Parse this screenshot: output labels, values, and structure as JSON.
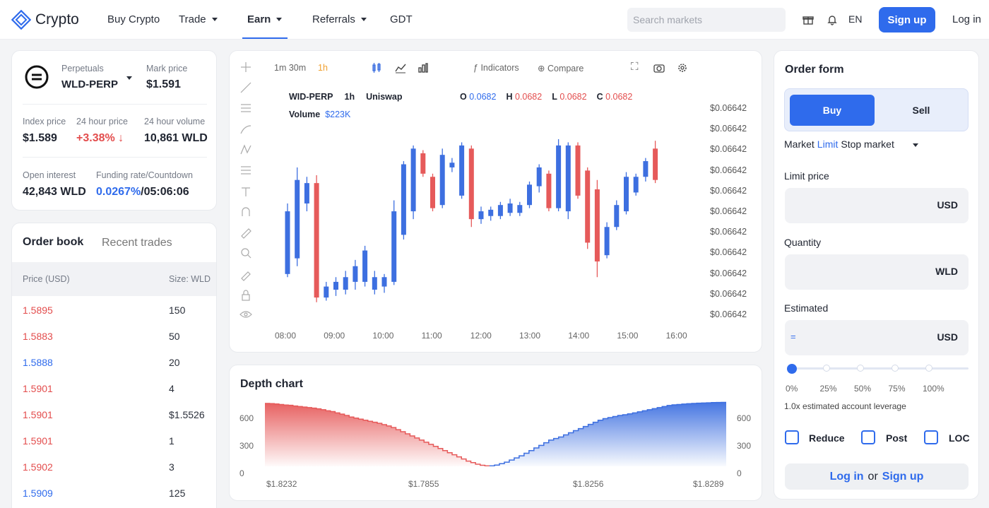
{
  "nav": {
    "brand": "Crypto",
    "items": [
      "Buy Crypto",
      "Trade",
      "Earn",
      "Referrals",
      "GDT"
    ],
    "search_placeholder": "Search markets",
    "lang": "EN",
    "signup": "Sign up",
    "login": "Log in"
  },
  "ticker": {
    "market_type": "Perpetuals",
    "symbol": "WLD-PERP",
    "mark_price_label": "Mark price",
    "mark_price": "$1.591",
    "index_price_label": "Index price",
    "index_price": "$1.589",
    "change_label": "24 hour price",
    "change": "+3.38%",
    "volume_label": "24 hour volume",
    "volume": "10,861 WLD",
    "oi_label": "Open interest",
    "oi": "42,843 WLD",
    "funding_label": "Funding rate/Countdown",
    "funding_rate": "0.0267%",
    "countdown": "/05:06:06"
  },
  "orderbook": {
    "tab_active": "Order book",
    "tab_other": "Recent trades",
    "col_price": "Price (USD)",
    "col_size": "Size: WLD",
    "rows": [
      {
        "price": "1.5895",
        "size": "150",
        "side": "sell"
      },
      {
        "price": "1.5883",
        "size": "50",
        "side": "sell"
      },
      {
        "price": "1.5888",
        "size": "20",
        "side": "buy"
      },
      {
        "price": "1.5901",
        "size": "4",
        "side": "sell"
      },
      {
        "price": "1.5901",
        "size": "$1.5526",
        "side": "sell"
      },
      {
        "price": "1.5901",
        "size": "1",
        "side": "sell"
      },
      {
        "price": "1.5902",
        "size": "3",
        "side": "sell"
      },
      {
        "price": "1.5909",
        "size": "125",
        "side": "buy"
      }
    ]
  },
  "chart": {
    "intervals": "1m 30m",
    "active_interval": "1h",
    "indicators": "Indicators",
    "compare": "Compare",
    "symbol": "WID-PERP",
    "tf": "1h",
    "source": "Uniswap",
    "o_label": "O",
    "o": "0.0682",
    "h_label": "H",
    "h": "0.0682",
    "l_label": "L",
    "l": "0.0682",
    "c_label": "C",
    "c": "0.0682",
    "volume_label": "Volume",
    "volume": "$223K",
    "price_labels": [
      "$0.06642",
      "$0.06642",
      "$0.06642",
      "$0.06642",
      "$0.06642",
      "$0.06642",
      "$0.06642",
      "$0.06642",
      "$0.06642",
      "$0.06642",
      "$0.06642"
    ],
    "time_labels": [
      "08:00",
      "09:00",
      "10:00",
      "11:00",
      "12:00",
      "13:00",
      "14:00",
      "15:00",
      "16:00"
    ],
    "colors": {
      "up": "#3d6fe0",
      "down": "#e65a5a"
    }
  },
  "chart_data": {
    "type": "candlestick",
    "x": [
      "08:00",
      "09:00",
      "10:00",
      "11:00",
      "12:00",
      "13:00",
      "14:00",
      "15:00",
      "16:00"
    ],
    "candles": [
      {
        "o": 0.2,
        "c": 0.6,
        "h": 0.65,
        "l": 0.18,
        "dir": "up"
      },
      {
        "o": 0.3,
        "c": 0.8,
        "h": 0.88,
        "l": 0.25,
        "dir": "up"
      },
      {
        "o": 0.65,
        "c": 0.78,
        "h": 0.82,
        "l": 0.6,
        "dir": "up"
      },
      {
        "o": 0.78,
        "c": 0.05,
        "h": 0.83,
        "l": 0.02,
        "dir": "down"
      },
      {
        "o": 0.05,
        "c": 0.12,
        "h": 0.15,
        "l": 0.03,
        "dir": "up"
      },
      {
        "o": 0.1,
        "c": 0.15,
        "h": 0.18,
        "l": 0.06,
        "dir": "up"
      },
      {
        "o": 0.1,
        "c": 0.18,
        "h": 0.22,
        "l": 0.07,
        "dir": "up"
      },
      {
        "o": 0.15,
        "c": 0.25,
        "h": 0.29,
        "l": 0.1,
        "dir": "up"
      },
      {
        "o": 0.15,
        "c": 0.35,
        "h": 0.38,
        "l": 0.12,
        "dir": "up"
      },
      {
        "o": 0.1,
        "c": 0.18,
        "h": 0.22,
        "l": 0.07,
        "dir": "up"
      },
      {
        "o": 0.12,
        "c": 0.18,
        "h": 0.2,
        "l": 0.08,
        "dir": "up"
      },
      {
        "o": 0.15,
        "c": 0.6,
        "h": 0.67,
        "l": 0.13,
        "dir": "up"
      },
      {
        "o": 0.45,
        "c": 0.9,
        "h": 0.92,
        "l": 0.42,
        "dir": "up"
      },
      {
        "o": 0.6,
        "c": 1.0,
        "h": 1.02,
        "l": 0.55,
        "dir": "up"
      },
      {
        "o": 0.97,
        "c": 0.84,
        "h": 0.99,
        "l": 0.82,
        "dir": "down"
      },
      {
        "o": 0.82,
        "c": 0.62,
        "h": 0.84,
        "l": 0.6,
        "dir": "down"
      },
      {
        "o": 0.64,
        "c": 0.96,
        "h": 1.0,
        "l": 0.62,
        "dir": "up"
      },
      {
        "o": 0.88,
        "c": 0.91,
        "h": 0.94,
        "l": 0.85,
        "dir": "up"
      },
      {
        "o": 0.7,
        "c": 1.02,
        "h": 1.04,
        "l": 0.68,
        "dir": "up"
      },
      {
        "o": 1.0,
        "c": 0.55,
        "h": 1.02,
        "l": 0.5,
        "dir": "down"
      },
      {
        "o": 0.55,
        "c": 0.6,
        "h": 0.63,
        "l": 0.52,
        "dir": "up"
      },
      {
        "o": 0.57,
        "c": 0.61,
        "h": 0.63,
        "l": 0.54,
        "dir": "up"
      },
      {
        "o": 0.57,
        "c": 0.64,
        "h": 0.66,
        "l": 0.55,
        "dir": "up"
      },
      {
        "o": 0.59,
        "c": 0.65,
        "h": 0.68,
        "l": 0.57,
        "dir": "up"
      },
      {
        "o": 0.59,
        "c": 0.64,
        "h": 0.66,
        "l": 0.57,
        "dir": "up"
      },
      {
        "o": 0.64,
        "c": 0.77,
        "h": 0.79,
        "l": 0.62,
        "dir": "up"
      },
      {
        "o": 0.76,
        "c": 0.88,
        "h": 0.9,
        "l": 0.72,
        "dir": "up"
      },
      {
        "o": 0.84,
        "c": 0.62,
        "h": 0.86,
        "l": 0.6,
        "dir": "down"
      },
      {
        "o": 0.62,
        "c": 1.02,
        "h": 1.06,
        "l": 0.6,
        "dir": "up"
      },
      {
        "o": 0.6,
        "c": 1.02,
        "h": 1.04,
        "l": 0.55,
        "dir": "up"
      },
      {
        "o": 1.02,
        "c": 0.7,
        "h": 1.04,
        "l": 0.68,
        "dir": "down"
      },
      {
        "o": 0.86,
        "c": 0.4,
        "h": 0.88,
        "l": 0.36,
        "dir": "down"
      },
      {
        "o": 0.74,
        "c": 0.28,
        "h": 0.8,
        "l": 0.18,
        "dir": "down"
      },
      {
        "o": 0.32,
        "c": 0.5,
        "h": 0.53,
        "l": 0.3,
        "dir": "up"
      },
      {
        "o": 0.5,
        "c": 0.64,
        "h": 0.67,
        "l": 0.48,
        "dir": "up"
      },
      {
        "o": 0.6,
        "c": 0.82,
        "h": 0.85,
        "l": 0.58,
        "dir": "up"
      },
      {
        "o": 0.72,
        "c": 0.82,
        "h": 0.84,
        "l": 0.7,
        "dir": "up"
      },
      {
        "o": 0.82,
        "c": 0.92,
        "h": 0.94,
        "l": 0.79,
        "dir": "up"
      },
      {
        "o": 1.0,
        "c": 0.8,
        "h": 1.05,
        "l": 0.78,
        "dir": "down"
      },
      {
        "o": 0.79,
        "c": 0.93,
        "h": 0.95,
        "l": 0.77,
        "dir": "up"
      }
    ]
  },
  "depth": {
    "title": "Depth chart",
    "y_ticks": [
      "600",
      "300",
      "0"
    ],
    "x_labels": [
      "$1.8232",
      "$1.7855",
      "$1.8256",
      "$1.8289"
    ]
  },
  "depth_data": {
    "type": "area",
    "bids": [
      600,
      598,
      595,
      590,
      585,
      582,
      575,
      570,
      565,
      560,
      555,
      548,
      540,
      530,
      522,
      510,
      498,
      485,
      470,
      460,
      450,
      440,
      430,
      420,
      410,
      398,
      385,
      370,
      350,
      330,
      310,
      290,
      270,
      250,
      230,
      210,
      190,
      170,
      150,
      130,
      110,
      90,
      70,
      50,
      35,
      20,
      10,
      4
    ],
    "asks": [
      4,
      12,
      25,
      40,
      60,
      80,
      100,
      125,
      150,
      175,
      200,
      225,
      250,
      265,
      280,
      300,
      320,
      340,
      360,
      380,
      400,
      420,
      440,
      455,
      465,
      475,
      485,
      492,
      500,
      510,
      520,
      530,
      540,
      550,
      560,
      570,
      580,
      586,
      590,
      594,
      597,
      600,
      602,
      604,
      606,
      608,
      609,
      610
    ]
  },
  "orderform": {
    "title": "Order form",
    "buy": "Buy",
    "sell": "Sell",
    "type_market": "Market",
    "type_limit": "Limit",
    "type_stop": "Stop market",
    "limit_label": "Limit price",
    "limit_unit": "USD",
    "qty_label": "Quantity",
    "qty_unit": "WLD",
    "est_label": "Estimated",
    "est_symbol": "=",
    "est_unit": "USD",
    "slider_ticks": [
      "0%",
      "25%",
      "50%",
      "75%",
      "100%"
    ],
    "slider_value_pct": 0,
    "leverage_text": "1.0x estimated account leverage",
    "reduce": "Reduce",
    "post": "Post",
    "loc": "LOC",
    "cta_login": "Log in",
    "cta_or": "or",
    "cta_signup": "Sign up"
  }
}
